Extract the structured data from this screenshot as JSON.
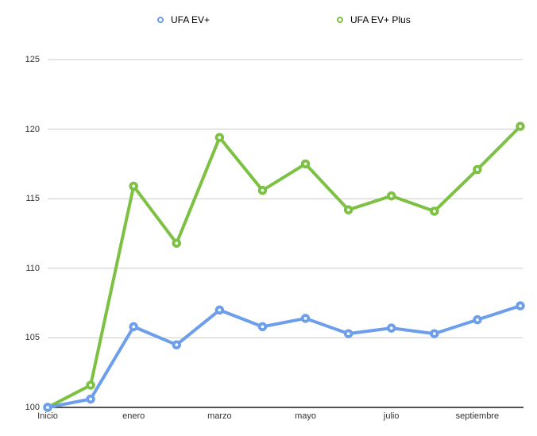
{
  "chart_data": {
    "type": "line",
    "title": "",
    "xlabel": "",
    "ylabel": "",
    "ylim": [
      100,
      125
    ],
    "y_ticks": [
      100,
      105,
      110,
      115,
      120,
      125
    ],
    "num_points": 12,
    "x_tick_labels": [
      "Inicio",
      "enero",
      "marzo",
      "mayo",
      "julio",
      "septiembre"
    ],
    "x_tick_indices": [
      0,
      2,
      4,
      6,
      8,
      10
    ],
    "grid": true,
    "legend_position": "top",
    "series": [
      {
        "name": "UFA EV+",
        "color": "#6D9EEB",
        "values": [
          100,
          100.6,
          105.8,
          104.5,
          107.0,
          105.8,
          106.4,
          105.3,
          105.7,
          105.3,
          106.3,
          107.3
        ]
      },
      {
        "name": "UFA EV+ Plus",
        "color": "#7CC142",
        "values": [
          100,
          101.6,
          115.9,
          111.8,
          119.4,
          115.6,
          117.5,
          114.2,
          115.2,
          114.1,
          117.1,
          120.2
        ]
      }
    ],
    "colors": {
      "gridline": "#CCCCCC",
      "axis_line": "#1A1A1A",
      "tick_text": "#333333",
      "legend_text": "#000000",
      "marker_center": "#FFFFFF"
    }
  }
}
